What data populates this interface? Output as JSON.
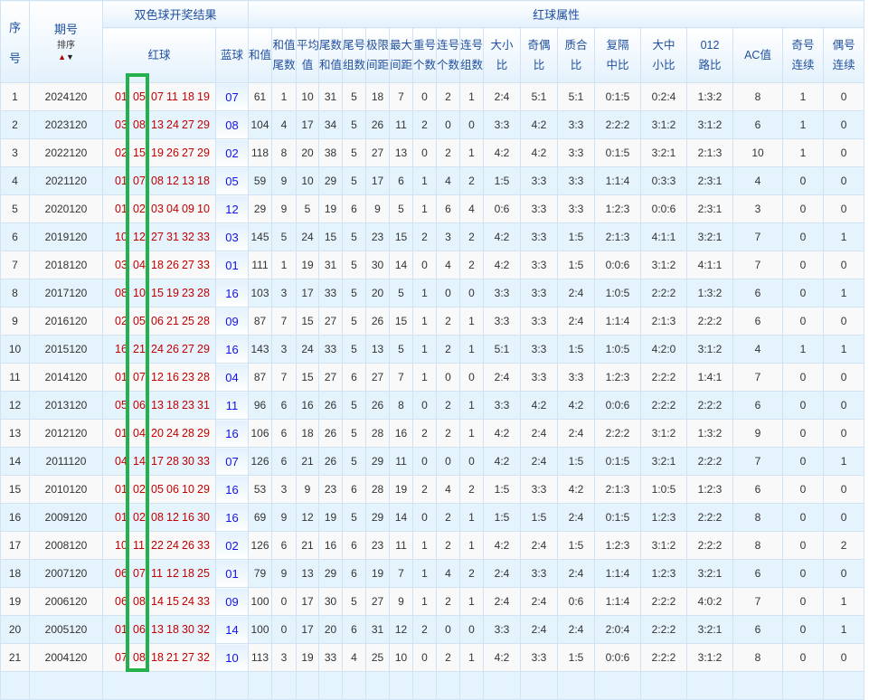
{
  "header": {
    "seq": [
      "序",
      "号"
    ],
    "issue": "期号",
    "sort_label": "排序",
    "sort_up_icon": "arrow-up",
    "sort_down_icon": "arrow-down",
    "draw_result": "双色球开奖结果",
    "red_attr": "红球属性",
    "red": "红球",
    "blue": "蓝球",
    "cols": [
      [
        "和值"
      ],
      [
        "和值",
        "尾数"
      ],
      [
        "平均",
        "值"
      ],
      [
        "尾数",
        "和值"
      ],
      [
        "尾号",
        "组数"
      ],
      [
        "极限",
        "间距"
      ],
      [
        "最大",
        "间距"
      ],
      [
        "重号",
        "个数"
      ],
      [
        "连号",
        "个数"
      ],
      [
        "连号",
        "组数"
      ],
      [
        "大小",
        "比"
      ],
      [
        "奇偶",
        "比"
      ],
      [
        "质合",
        "比"
      ],
      [
        "复隔",
        "中比"
      ],
      [
        "大中",
        "小比"
      ],
      [
        "012",
        "路比"
      ],
      [
        "AC值"
      ],
      [
        "奇号",
        "连续"
      ],
      [
        "偶号",
        "连续"
      ]
    ]
  },
  "colors": {
    "red_ball": "#c00000",
    "blue_ball": "#1111ee",
    "highlight_box": "#22b14c",
    "header_text": "#1f4f9e"
  },
  "rows": [
    {
      "seq": "1",
      "issue": "2024120",
      "red": [
        "01",
        "05",
        "07",
        "11",
        "18",
        "19"
      ],
      "blue": "07",
      "attrs": [
        "61",
        "1",
        "10",
        "31",
        "5",
        "18",
        "7",
        "0",
        "2",
        "1",
        "2:4",
        "5:1",
        "5:1",
        "0:1:5",
        "0:2:4",
        "1:3:2",
        "8",
        "1",
        "0"
      ]
    },
    {
      "seq": "2",
      "issue": "2023120",
      "red": [
        "03",
        "08",
        "13",
        "24",
        "27",
        "29"
      ],
      "blue": "08",
      "attrs": [
        "104",
        "4",
        "17",
        "34",
        "5",
        "26",
        "11",
        "2",
        "0",
        "0",
        "3:3",
        "4:2",
        "3:3",
        "2:2:2",
        "3:1:2",
        "3:1:2",
        "6",
        "1",
        "0"
      ]
    },
    {
      "seq": "3",
      "issue": "2022120",
      "red": [
        "02",
        "15",
        "19",
        "26",
        "27",
        "29"
      ],
      "blue": "02",
      "attrs": [
        "118",
        "8",
        "20",
        "38",
        "5",
        "27",
        "13",
        "0",
        "2",
        "1",
        "4:2",
        "4:2",
        "3:3",
        "0:1:5",
        "3:2:1",
        "2:1:3",
        "10",
        "1",
        "0"
      ]
    },
    {
      "seq": "4",
      "issue": "2021120",
      "red": [
        "01",
        "07",
        "08",
        "12",
        "13",
        "18"
      ],
      "blue": "05",
      "attrs": [
        "59",
        "9",
        "10",
        "29",
        "5",
        "17",
        "6",
        "1",
        "4",
        "2",
        "1:5",
        "3:3",
        "3:3",
        "1:1:4",
        "0:3:3",
        "2:3:1",
        "4",
        "0",
        "0"
      ]
    },
    {
      "seq": "5",
      "issue": "2020120",
      "red": [
        "01",
        "02",
        "03",
        "04",
        "09",
        "10"
      ],
      "blue": "12",
      "attrs": [
        "29",
        "9",
        "5",
        "19",
        "6",
        "9",
        "5",
        "1",
        "6",
        "4",
        "0:6",
        "3:3",
        "3:3",
        "1:2:3",
        "0:0:6",
        "2:3:1",
        "3",
        "0",
        "0"
      ]
    },
    {
      "seq": "6",
      "issue": "2019120",
      "red": [
        "10",
        "12",
        "27",
        "31",
        "32",
        "33"
      ],
      "blue": "03",
      "attrs": [
        "145",
        "5",
        "24",
        "15",
        "5",
        "23",
        "15",
        "2",
        "3",
        "2",
        "4:2",
        "3:3",
        "1:5",
        "2:1:3",
        "4:1:1",
        "3:2:1",
        "7",
        "0",
        "1"
      ]
    },
    {
      "seq": "7",
      "issue": "2018120",
      "red": [
        "03",
        "04",
        "18",
        "26",
        "27",
        "33"
      ],
      "blue": "01",
      "attrs": [
        "111",
        "1",
        "19",
        "31",
        "5",
        "30",
        "14",
        "0",
        "4",
        "2",
        "4:2",
        "3:3",
        "1:5",
        "0:0:6",
        "3:1:2",
        "4:1:1",
        "7",
        "0",
        "0"
      ]
    },
    {
      "seq": "8",
      "issue": "2017120",
      "red": [
        "08",
        "10",
        "15",
        "19",
        "23",
        "28"
      ],
      "blue": "16",
      "attrs": [
        "103",
        "3",
        "17",
        "33",
        "5",
        "20",
        "5",
        "1",
        "0",
        "0",
        "3:3",
        "3:3",
        "2:4",
        "1:0:5",
        "2:2:2",
        "1:3:2",
        "6",
        "0",
        "1"
      ]
    },
    {
      "seq": "9",
      "issue": "2016120",
      "red": [
        "02",
        "05",
        "06",
        "21",
        "25",
        "28"
      ],
      "blue": "09",
      "attrs": [
        "87",
        "7",
        "15",
        "27",
        "5",
        "26",
        "15",
        "1",
        "2",
        "1",
        "3:3",
        "3:3",
        "2:4",
        "1:1:4",
        "2:1:3",
        "2:2:2",
        "6",
        "0",
        "0"
      ]
    },
    {
      "seq": "10",
      "issue": "2015120",
      "red": [
        "16",
        "21",
        "24",
        "26",
        "27",
        "29"
      ],
      "blue": "16",
      "attrs": [
        "143",
        "3",
        "24",
        "33",
        "5",
        "13",
        "5",
        "1",
        "2",
        "1",
        "5:1",
        "3:3",
        "1:5",
        "1:0:5",
        "4:2:0",
        "3:1:2",
        "4",
        "1",
        "1"
      ]
    },
    {
      "seq": "11",
      "issue": "2014120",
      "red": [
        "01",
        "07",
        "12",
        "16",
        "23",
        "28"
      ],
      "blue": "04",
      "attrs": [
        "87",
        "7",
        "15",
        "27",
        "6",
        "27",
        "7",
        "1",
        "0",
        "0",
        "2:4",
        "3:3",
        "3:3",
        "1:2:3",
        "2:2:2",
        "1:4:1",
        "7",
        "0",
        "0"
      ]
    },
    {
      "seq": "12",
      "issue": "2013120",
      "red": [
        "05",
        "06",
        "13",
        "18",
        "23",
        "31"
      ],
      "blue": "11",
      "attrs": [
        "96",
        "6",
        "16",
        "26",
        "5",
        "26",
        "8",
        "0",
        "2",
        "1",
        "3:3",
        "4:2",
        "4:2",
        "0:0:6",
        "2:2:2",
        "2:2:2",
        "6",
        "0",
        "0"
      ]
    },
    {
      "seq": "13",
      "issue": "2012120",
      "red": [
        "01",
        "04",
        "20",
        "24",
        "28",
        "29"
      ],
      "blue": "16",
      "attrs": [
        "106",
        "6",
        "18",
        "26",
        "5",
        "28",
        "16",
        "2",
        "2",
        "1",
        "4:2",
        "2:4",
        "2:4",
        "2:2:2",
        "3:1:2",
        "1:3:2",
        "9",
        "0",
        "0"
      ]
    },
    {
      "seq": "14",
      "issue": "2011120",
      "red": [
        "04",
        "14",
        "17",
        "28",
        "30",
        "33"
      ],
      "blue": "07",
      "attrs": [
        "126",
        "6",
        "21",
        "26",
        "5",
        "29",
        "11",
        "0",
        "0",
        "0",
        "4:2",
        "2:4",
        "1:5",
        "0:1:5",
        "3:2:1",
        "2:2:2",
        "7",
        "0",
        "1"
      ]
    },
    {
      "seq": "15",
      "issue": "2010120",
      "red": [
        "01",
        "02",
        "05",
        "06",
        "10",
        "29"
      ],
      "blue": "16",
      "attrs": [
        "53",
        "3",
        "9",
        "23",
        "6",
        "28",
        "19",
        "2",
        "4",
        "2",
        "1:5",
        "3:3",
        "4:2",
        "2:1:3",
        "1:0:5",
        "1:2:3",
        "6",
        "0",
        "0"
      ]
    },
    {
      "seq": "16",
      "issue": "2009120",
      "red": [
        "01",
        "02",
        "08",
        "12",
        "16",
        "30"
      ],
      "blue": "16",
      "attrs": [
        "69",
        "9",
        "12",
        "19",
        "5",
        "29",
        "14",
        "0",
        "2",
        "1",
        "1:5",
        "1:5",
        "2:4",
        "0:1:5",
        "1:2:3",
        "2:2:2",
        "8",
        "0",
        "0"
      ]
    },
    {
      "seq": "17",
      "issue": "2008120",
      "red": [
        "10",
        "11",
        "22",
        "24",
        "26",
        "33"
      ],
      "blue": "02",
      "attrs": [
        "126",
        "6",
        "21",
        "16",
        "6",
        "23",
        "11",
        "1",
        "2",
        "1",
        "4:2",
        "2:4",
        "1:5",
        "1:2:3",
        "3:1:2",
        "2:2:2",
        "8",
        "0",
        "2"
      ]
    },
    {
      "seq": "18",
      "issue": "2007120",
      "red": [
        "06",
        "07",
        "11",
        "12",
        "18",
        "25"
      ],
      "blue": "01",
      "attrs": [
        "79",
        "9",
        "13",
        "29",
        "6",
        "19",
        "7",
        "1",
        "4",
        "2",
        "2:4",
        "3:3",
        "2:4",
        "1:1:4",
        "1:2:3",
        "3:2:1",
        "6",
        "0",
        "0"
      ]
    },
    {
      "seq": "19",
      "issue": "2006120",
      "red": [
        "06",
        "08",
        "14",
        "15",
        "24",
        "33"
      ],
      "blue": "09",
      "attrs": [
        "100",
        "0",
        "17",
        "30",
        "5",
        "27",
        "9",
        "1",
        "2",
        "1",
        "2:4",
        "2:4",
        "0:6",
        "1:1:4",
        "2:2:2",
        "4:0:2",
        "7",
        "0",
        "1"
      ]
    },
    {
      "seq": "20",
      "issue": "2005120",
      "red": [
        "01",
        "06",
        "13",
        "18",
        "30",
        "32"
      ],
      "blue": "14",
      "attrs": [
        "100",
        "0",
        "17",
        "20",
        "6",
        "31",
        "12",
        "2",
        "0",
        "0",
        "3:3",
        "2:4",
        "2:4",
        "2:0:4",
        "2:2:2",
        "3:2:1",
        "6",
        "0",
        "1"
      ]
    },
    {
      "seq": "21",
      "issue": "2004120",
      "red": [
        "07",
        "08",
        "18",
        "21",
        "27",
        "32"
      ],
      "blue": "10",
      "attrs": [
        "113",
        "3",
        "19",
        "33",
        "4",
        "25",
        "10",
        "0",
        "2",
        "1",
        "4:2",
        "3:3",
        "1:5",
        "0:0:6",
        "2:2:2",
        "3:1:2",
        "8",
        "0",
        "0"
      ]
    }
  ]
}
